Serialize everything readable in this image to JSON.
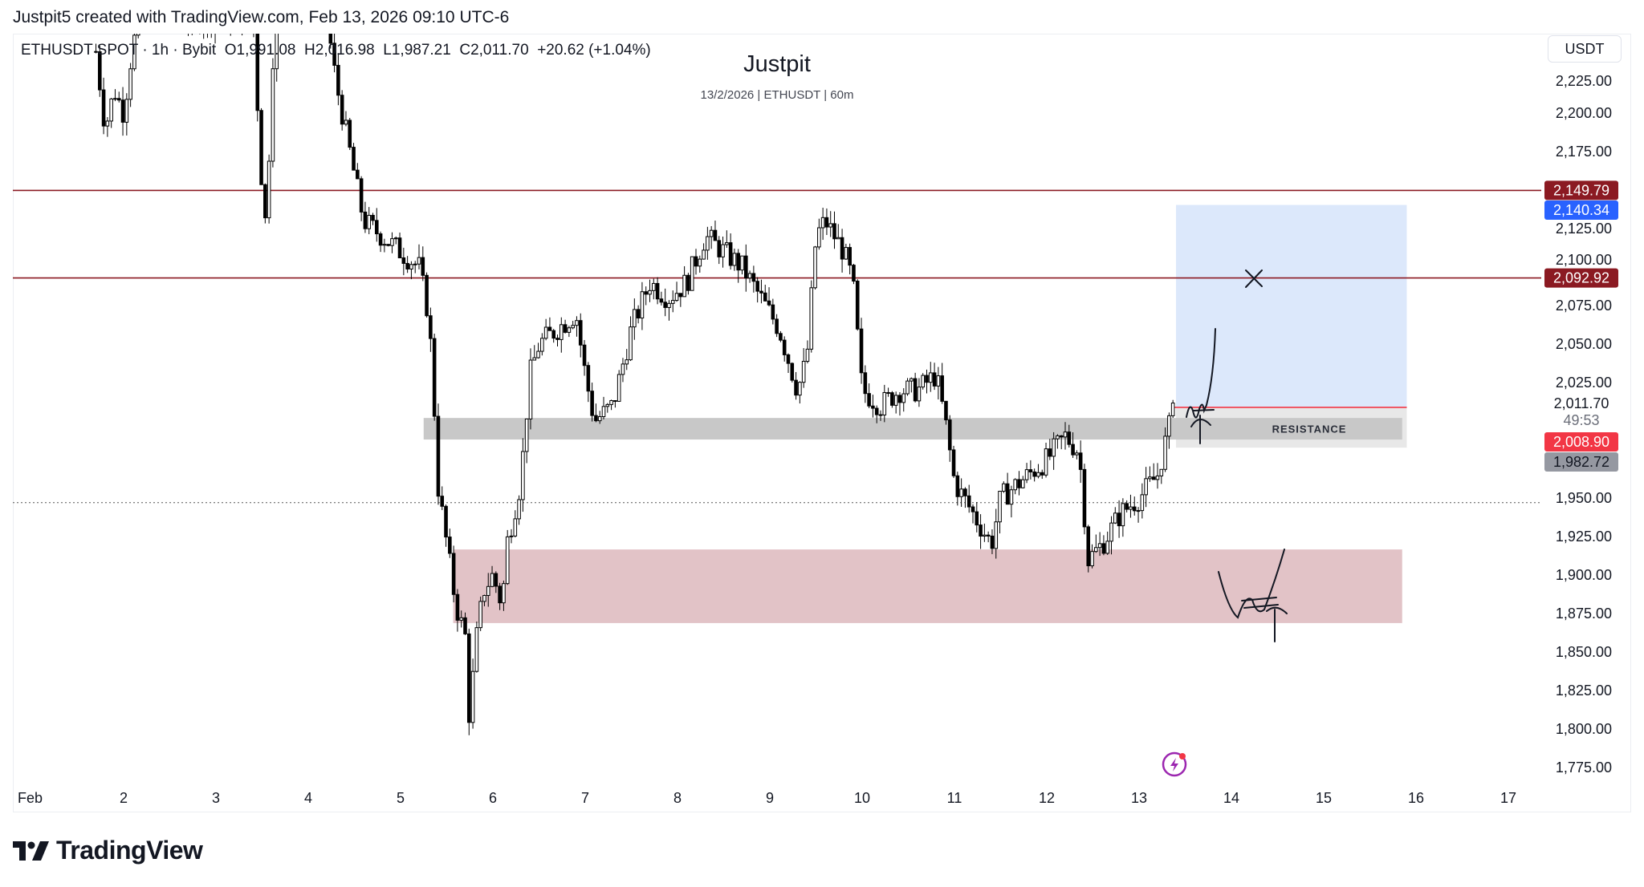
{
  "header": {
    "credit": "Justpit5 created with TradingView.com, Feb 13, 2026 09:10 UTC-6"
  },
  "legend": {
    "text": "ETHUSDT SPOT · 1h · Bybit  O1,991.08  H2,016.98  L1,987.21  C2,011.70  +20.62 (+1.04%)"
  },
  "title": "Justpit",
  "subtitle": "13/2/2026 | ETHUSDT | 60m",
  "currency_button": "USDT",
  "logo_text": "TradingView",
  "colors": {
    "level_line": "#8b1a22",
    "blue_tag": "#2962ff",
    "red_tag": "#f23645",
    "gray_tag": "#9598a1",
    "target_box": "#dce8fb",
    "demand_box": "#e2c3c7",
    "resistance_box": "#c8c8c8"
  },
  "chart_data": {
    "type": "candlestick",
    "symbol": "ETHUSDT",
    "interval": "1h",
    "ylim": [
      1765,
      2252
    ],
    "xlim_days": [
      1,
      17.5
    ],
    "y_ticks": [
      "2,225.00",
      "2,200.00",
      "2,175.00",
      "2,125.00",
      "2,100.00",
      "2,075.00",
      "2,050.00",
      "2,025.00",
      "1,950.00",
      "1,925.00",
      "1,900.00",
      "1,875.00",
      "1,850.00",
      "1,825.00",
      "1,800.00",
      "1,775.00"
    ],
    "y_tick_values": [
      2225,
      2200,
      2175,
      2125,
      2100,
      2075,
      2050,
      2025,
      1950,
      1925,
      1900,
      1875,
      1850,
      1825,
      1800,
      1775
    ],
    "x_ticks": [
      "Feb",
      "2",
      "3",
      "4",
      "5",
      "6",
      "7",
      "8",
      "9",
      "10",
      "11",
      "12",
      "13",
      "14",
      "15",
      "16",
      "17"
    ],
    "price_path": [
      [
        1.7,
        2240
      ],
      [
        1.8,
        2190
      ],
      [
        1.9,
        2215
      ],
      [
        2.0,
        2200
      ],
      [
        2.1,
        2245
      ],
      [
        2.2,
        2262
      ],
      [
        3.4,
        2262
      ],
      [
        3.5,
        2150
      ],
      [
        3.55,
        2120
      ],
      [
        3.6,
        2230
      ],
      [
        3.7,
        2270
      ],
      [
        4.2,
        2262
      ],
      [
        4.3,
        2220
      ],
      [
        4.5,
        2160
      ],
      [
        4.6,
        2130
      ],
      [
        4.8,
        2120
      ],
      [
        5.0,
        2110
      ],
      [
        5.2,
        2100
      ],
      [
        5.3,
        2070
      ],
      [
        5.35,
        2030
      ],
      [
        5.4,
        1960
      ],
      [
        5.5,
        1920
      ],
      [
        5.6,
        1880
      ],
      [
        5.7,
        1860
      ],
      [
        5.75,
        1800
      ],
      [
        5.8,
        1850
      ],
      [
        5.9,
        1890
      ],
      [
        6.0,
        1900
      ],
      [
        6.1,
        1880
      ],
      [
        6.15,
        1920
      ],
      [
        6.3,
        1960
      ],
      [
        6.4,
        2030
      ],
      [
        6.5,
        2050
      ],
      [
        6.7,
        2060
      ],
      [
        6.9,
        2070
      ],
      [
        7.0,
        2030
      ],
      [
        7.1,
        2000
      ],
      [
        7.3,
        2010
      ],
      [
        7.5,
        2060
      ],
      [
        7.7,
        2090
      ],
      [
        7.9,
        2080
      ],
      [
        8.1,
        2090
      ],
      [
        8.3,
        2120
      ],
      [
        8.5,
        2110
      ],
      [
        8.7,
        2100
      ],
      [
        8.9,
        2080
      ],
      [
        9.1,
        2060
      ],
      [
        9.3,
        2020
      ],
      [
        9.4,
        2040
      ],
      [
        9.5,
        2120
      ],
      [
        9.6,
        2130
      ],
      [
        9.8,
        2110
      ],
      [
        9.9,
        2090
      ],
      [
        10.0,
        2020
      ],
      [
        10.2,
        2010
      ],
      [
        10.4,
        2020
      ],
      [
        10.6,
        2020
      ],
      [
        10.8,
        2030
      ],
      [
        10.9,
        2000
      ],
      [
        11.0,
        1960
      ],
      [
        11.2,
        1940
      ],
      [
        11.4,
        1920
      ],
      [
        11.5,
        1950
      ],
      [
        11.7,
        1960
      ],
      [
        12.0,
        1975
      ],
      [
        12.2,
        1990
      ],
      [
        12.35,
        1980
      ],
      [
        12.45,
        1910
      ],
      [
        12.6,
        1920
      ],
      [
        12.8,
        1940
      ],
      [
        13.0,
        1950
      ],
      [
        13.2,
        1965
      ],
      [
        13.3,
        1990
      ],
      [
        13.39,
        2011.7
      ]
    ],
    "levels": [
      {
        "price": 2149.79,
        "label": "2,149.79",
        "kind": "resistance-line"
      },
      {
        "price": 2092.92,
        "label": "2,092.92",
        "kind": "resistance-line"
      }
    ],
    "tags": {
      "target": "2,140.34",
      "last": "2,011.70",
      "countdown": "49:53",
      "entry": "2,008.90",
      "stop": "1,982.72"
    },
    "target_zone": {
      "from_price": 2008.9,
      "to_price": 2140.34,
      "from_day": 13.4,
      "to_day": 15.9
    },
    "resistance_zone": {
      "label": "RESISTANCE",
      "from_price": 1988,
      "to_price": 2002,
      "from_day": 5.25,
      "to_day": 15.85
    },
    "demand_zone": {
      "from_price": 1868.8,
      "to_price": 1916.6,
      "from_day": 5.57,
      "to_day": 15.85
    },
    "dotted_level": 1947
  }
}
